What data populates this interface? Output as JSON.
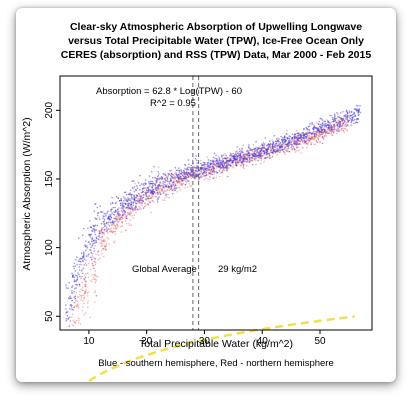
{
  "chart_data": {
    "type": "scatter",
    "title_lines": [
      "Clear-sky Atmospheric Absorption of Upwelling Longwave",
      "versus Total Precipitable Water (TPW), Ice-Free Ocean Only",
      "CERES (absorption) and RSS (TPW) Data, Mar 2000 - Feb 2015"
    ],
    "xlabel": "Total Precipitable Water (kg/m^2)",
    "ylabel": "Atmospheric Absorption (W/m^2)",
    "xlim": [
      5,
      59
    ],
    "ylim": [
      40,
      225
    ],
    "xticks": [
      10,
      20,
      30,
      40,
      50
    ],
    "yticks": [
      50,
      100,
      150,
      200
    ],
    "grid": false,
    "caption": "Blue - southern hemisphere, Red - northern hemisphere",
    "fit": {
      "equation": "Absorption = 62.8 * Log(TPW) - 60",
      "r_squared": "R^2 = 0.95",
      "coef": 62.8,
      "intercept": -60,
      "x_range": [
        6.5,
        56
      ],
      "color": "#f2e04a"
    },
    "global_average": {
      "label": "Global Average",
      "value_label": "29 kg/m2",
      "x": 29,
      "near_line_x": 28
    },
    "series": [
      {
        "name": "Blue - southern hemisphere",
        "color": "#3a3ae6",
        "trend_x": [
          6,
          7,
          8,
          9,
          10,
          12,
          15,
          20,
          25,
          30,
          35,
          40,
          45,
          50,
          55,
          57
        ],
        "trend_y": [
          52,
          68,
          80,
          92,
          104,
          117,
          128,
          142,
          151,
          158,
          164,
          170,
          177,
          186,
          195,
          199
        ]
      },
      {
        "name": "Red - northern hemisphere",
        "color": "#e84545",
        "trend_x": [
          7,
          8,
          9,
          10,
          11,
          12,
          15,
          20,
          25,
          30,
          35,
          40,
          45,
          50,
          55
        ],
        "trend_y": [
          56,
          62,
          68,
          76,
          90,
          102,
          120,
          138,
          148,
          156,
          163,
          169,
          175,
          183,
          192
        ]
      }
    ]
  }
}
